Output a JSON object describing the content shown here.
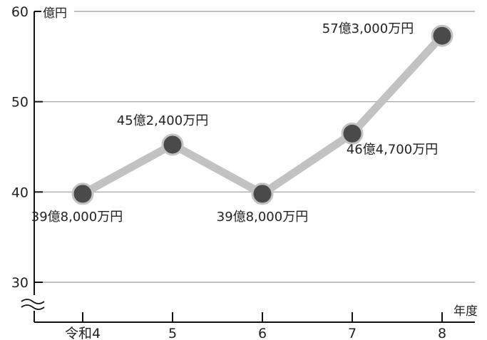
{
  "chart_data": {
    "type": "line",
    "y_unit": "億円",
    "x_unit": "年度",
    "categories": [
      "令和4",
      "5",
      "6",
      "7",
      "8"
    ],
    "values": [
      39.8,
      45.24,
      39.8,
      46.47,
      57.3
    ],
    "data_labels": [
      "39億8,000万円",
      "45億2,400万円",
      "39億8,000万円",
      "46億4,700万円",
      "57億3,000万円"
    ],
    "ylim": [
      30,
      60
    ],
    "y_ticks": [
      30,
      40,
      50,
      60
    ],
    "axis_break": true,
    "grid": true,
    "colors": {
      "line": "#c2c2c2",
      "marker": "#4a4a4a",
      "grid": "#9a9a9a",
      "axis": "#111111"
    }
  }
}
